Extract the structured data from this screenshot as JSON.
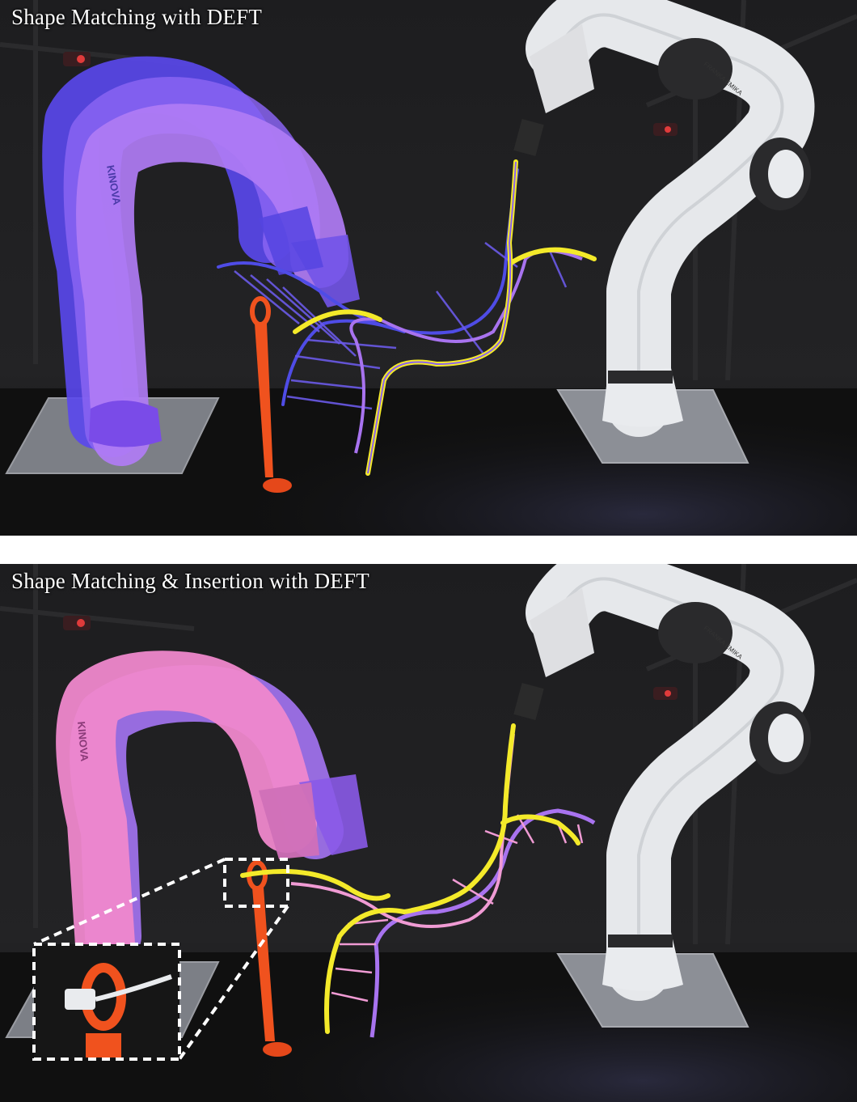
{
  "panels": [
    {
      "caption": "Shape Matching with DEFT"
    },
    {
      "caption": "Shape Matching & Insertion with DEFT"
    }
  ],
  "robot_labels": {
    "kinova": "KINOVA",
    "franka": "FRANKA EMIKA"
  },
  "colors": {
    "background": "#141414",
    "franka_body": "#e9ebee",
    "kinova_blue": "#6a52f2",
    "kinova_violet": "#b27bf4",
    "kinova_pink": "#ef88cc",
    "cable_yellow": "#f4ea2a",
    "cable_blue": "#4f4ce6",
    "cable_violet": "#a873ef",
    "cable_pink": "#f09bd4",
    "fixture_orange": "#f0521e",
    "zoom_box": "#ffffff"
  }
}
